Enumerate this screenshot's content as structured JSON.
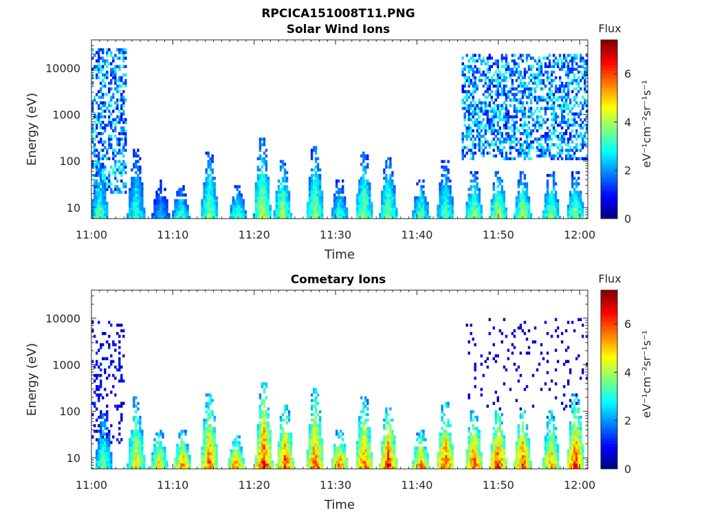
{
  "figure_title": "RPCICA151008T11.PNG",
  "chart_data": [
    {
      "type": "heatmap",
      "title": "Solar Wind Ions",
      "xlabel": "Time",
      "ylabel": "Energy (eV)",
      "x_ticks": [
        "11:00",
        "11:10",
        "11:20",
        "11:30",
        "11:40",
        "11:50",
        "12:00"
      ],
      "y_ticks": [
        "10",
        "100",
        "1000",
        "10000"
      ],
      "y_scale": "log",
      "ylim": [
        5.8,
        40000
      ],
      "xlim_minutes": [
        0,
        61
      ],
      "colorbar": {
        "title": "Flux",
        "label": "eV⁻¹cm⁻²sr⁻¹s⁻¹",
        "range": [
          0,
          7.4
        ],
        "ticks": [
          "0",
          "2",
          "4",
          "6"
        ]
      },
      "colormap": "jet",
      "bursts": [
        {
          "t": 1.0,
          "emin": 6,
          "emax": 90,
          "peak": 3.8
        },
        {
          "t": 5.5,
          "emin": 6,
          "emax": 180,
          "peak": 3.5
        },
        {
          "t": 8.5,
          "emin": 6,
          "emax": 40,
          "peak": 2.6
        },
        {
          "t": 11.0,
          "emin": 6,
          "emax": 30,
          "peak": 3.6
        },
        {
          "t": 14.5,
          "emin": 6,
          "emax": 150,
          "peak": 4.2
        },
        {
          "t": 18.0,
          "emin": 6,
          "emax": 30,
          "peak": 3.8
        },
        {
          "t": 21.0,
          "emin": 6,
          "emax": 300,
          "peak": 4.6
        },
        {
          "t": 23.5,
          "emin": 6,
          "emax": 100,
          "peak": 4.4
        },
        {
          "t": 27.5,
          "emin": 6,
          "emax": 200,
          "peak": 4.3
        },
        {
          "t": 30.5,
          "emin": 6,
          "emax": 40,
          "peak": 3.6
        },
        {
          "t": 33.5,
          "emin": 6,
          "emax": 150,
          "peak": 4.3
        },
        {
          "t": 36.5,
          "emin": 6,
          "emax": 120,
          "peak": 4.2
        },
        {
          "t": 40.5,
          "emin": 6,
          "emax": 40,
          "peak": 3.8
        },
        {
          "t": 43.5,
          "emin": 6,
          "emax": 110,
          "peak": 3.8
        },
        {
          "t": 47.0,
          "emin": 6,
          "emax": 60,
          "peak": 4.4
        },
        {
          "t": 50.0,
          "emin": 6,
          "emax": 60,
          "peak": 4.6
        },
        {
          "t": 53.0,
          "emin": 6,
          "emax": 60,
          "peak": 4.5
        },
        {
          "t": 56.5,
          "emin": 6,
          "emax": 60,
          "peak": 4.2
        },
        {
          "t": 59.5,
          "emin": 6,
          "emax": 60,
          "peak": 4.2
        }
      ],
      "scatter_regions": [
        {
          "t_from": 0,
          "t_to": 4.2,
          "emin": 20,
          "emax": 25000,
          "level": 2.0,
          "density": 0.45
        },
        {
          "t_from": 45.5,
          "t_to": 61,
          "emin": 100,
          "emax": 20000,
          "level": 2.0,
          "density": 0.5
        }
      ]
    },
    {
      "type": "heatmap",
      "title": "Cometary Ions",
      "xlabel": "Time",
      "ylabel": "Energy (eV)",
      "x_ticks": [
        "11:00",
        "11:10",
        "11:20",
        "11:30",
        "11:40",
        "11:50",
        "12:00"
      ],
      "y_ticks": [
        "10",
        "100",
        "1000",
        "10000"
      ],
      "y_scale": "log",
      "ylim": [
        5.8,
        40000
      ],
      "xlim_minutes": [
        0,
        61
      ],
      "colorbar": {
        "title": "Flux",
        "label": "eV⁻¹cm⁻²sr⁻¹s⁻¹",
        "range": [
          0,
          7.4
        ],
        "ticks": [
          "0",
          "2",
          "4",
          "6"
        ]
      },
      "colormap": "jet",
      "bursts": [
        {
          "t": 1.5,
          "emin": 6,
          "emax": 100,
          "peak": 4.0
        },
        {
          "t": 5.5,
          "emin": 6,
          "emax": 200,
          "peak": 5.2
        },
        {
          "t": 8.3,
          "emin": 6,
          "emax": 40,
          "peak": 5.4
        },
        {
          "t": 11.2,
          "emin": 6,
          "emax": 40,
          "peak": 6.0
        },
        {
          "t": 14.5,
          "emin": 6,
          "emax": 250,
          "peak": 6.2
        },
        {
          "t": 17.8,
          "emin": 6,
          "emax": 30,
          "peak": 6.2
        },
        {
          "t": 21.2,
          "emin": 6,
          "emax": 400,
          "peak": 6.8
        },
        {
          "t": 23.8,
          "emin": 6,
          "emax": 150,
          "peak": 6.6
        },
        {
          "t": 27.5,
          "emin": 6,
          "emax": 300,
          "peak": 6.4
        },
        {
          "t": 30.5,
          "emin": 6,
          "emax": 40,
          "peak": 6.2
        },
        {
          "t": 33.5,
          "emin": 6,
          "emax": 200,
          "peak": 6.2
        },
        {
          "t": 36.5,
          "emin": 6,
          "emax": 120,
          "peak": 6.8
        },
        {
          "t": 40.5,
          "emin": 6,
          "emax": 40,
          "peak": 6.0
        },
        {
          "t": 43.5,
          "emin": 6,
          "emax": 150,
          "peak": 6.6
        },
        {
          "t": 47.0,
          "emin": 6,
          "emax": 110,
          "peak": 6.6
        },
        {
          "t": 50.0,
          "emin": 6,
          "emax": 110,
          "peak": 6.8
        },
        {
          "t": 53.0,
          "emin": 6,
          "emax": 110,
          "peak": 6.6
        },
        {
          "t": 56.5,
          "emin": 6,
          "emax": 110,
          "peak": 5.8
        },
        {
          "t": 59.5,
          "emin": 6,
          "emax": 250,
          "peak": 6.6
        }
      ],
      "scatter_regions": [
        {
          "t_from": 0,
          "t_to": 4.0,
          "emin": 20,
          "emax": 9000,
          "level": 0.8,
          "density": 0.18
        },
        {
          "t_from": 46,
          "t_to": 61,
          "emin": 100,
          "emax": 10000,
          "level": 0.6,
          "density": 0.06
        }
      ]
    }
  ]
}
